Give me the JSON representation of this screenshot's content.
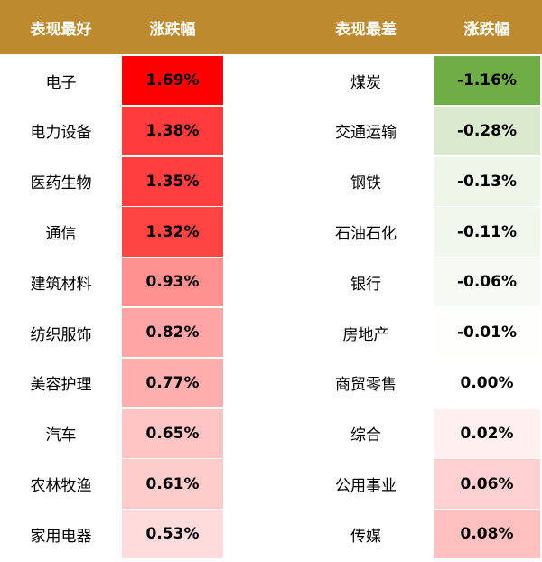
{
  "header": [
    "表现最好",
    "涨跌幅",
    "表现最差",
    "涨跌幅"
  ],
  "rows": [
    [
      "电子",
      "1.69%",
      "煤炭",
      "-1.16%"
    ],
    [
      "电力设备",
      "1.38%",
      "交通运输",
      "-0.28%"
    ],
    [
      "医药生物",
      "1.35%",
      "钢铁",
      "-0.13%"
    ],
    [
      "通信",
      "1.32%",
      "石油石化",
      "-0.11%"
    ],
    [
      "建筑材料",
      "0.93%",
      "银行",
      "-0.06%"
    ],
    [
      "纺织服饰",
      "0.82%",
      "房地产",
      "-0.01%"
    ],
    [
      "美容护理",
      "0.77%",
      "商贸零售",
      "0.00%"
    ],
    [
      "汽车",
      "0.65%",
      "综合",
      "0.02%"
    ],
    [
      "农林牧渔",
      "0.61%",
      "公用事业",
      "0.06%"
    ],
    [
      "家用电器",
      "0.53%",
      "传媒",
      "0.08%"
    ]
  ],
  "best_colors": [
    "#ff0000",
    "#ff3b3b",
    "#ff3f3f",
    "#ff4444",
    "#ff9090",
    "#ffa5a5",
    "#ffaeae",
    "#ffc5c5",
    "#ffcccc",
    "#ffdbdb"
  ],
  "worst_colors": [
    "#70ad47",
    "#dbe9cf",
    "#eef5e9",
    "#f1f7ec",
    "#f7faf4",
    "#fefefd",
    "#ffffff",
    "#fff0f0",
    "#ffd0d0",
    "#ffc0c0"
  ]
}
